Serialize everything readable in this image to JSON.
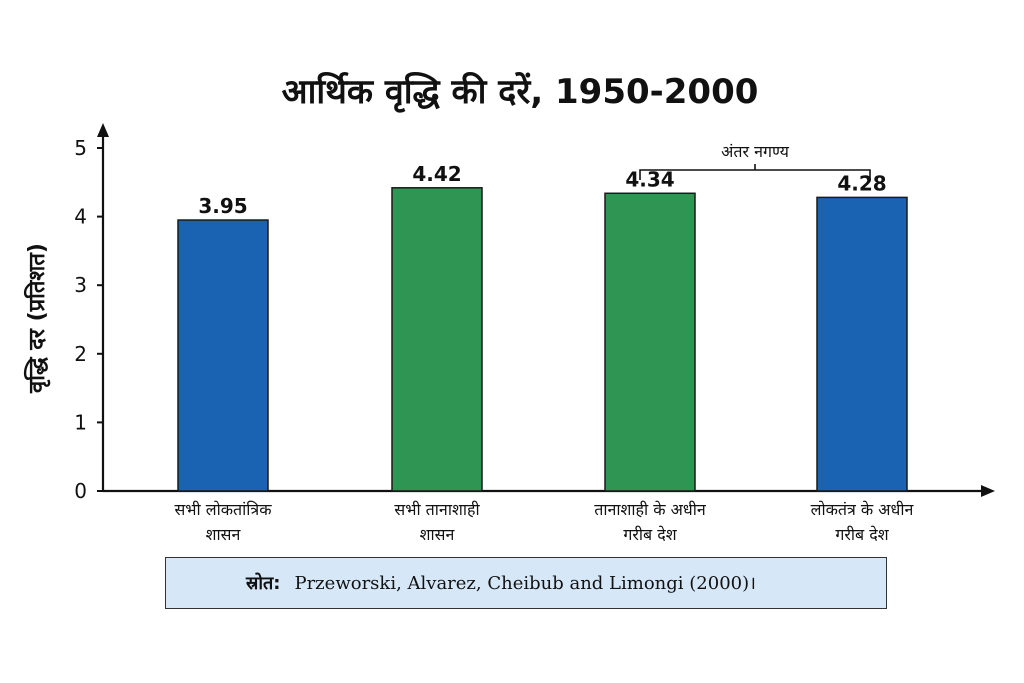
{
  "colors": {
    "democracy": "#1a63b3",
    "dictatorship": "#2f9553",
    "axis": "#111111",
    "source_bg": "#d6e8f8"
  },
  "chart_data": {
    "type": "bar",
    "title": "आर्थिक वृद्धि की दरें, 1950-2000",
    "ylabel": "वृद्धि दर (प्रतिशत)",
    "xlabel": "",
    "ylim": [
      0,
      5
    ],
    "yticks": [
      "0",
      "1",
      "2",
      "3",
      "4",
      "5"
    ],
    "grid": false,
    "categories": [
      [
        "सभी लोकतांत्रिक",
        "शासन"
      ],
      [
        "सभी तानाशाही",
        "शासन"
      ],
      [
        "तानाशाही के अधीन",
        "गरीब देश"
      ],
      [
        "लोकतंत्र के अधीन",
        "गरीब देश"
      ]
    ],
    "values": [
      3.95,
      4.42,
      4.34,
      4.28
    ],
    "value_labels": [
      "3.95",
      "4.42",
      "4.34",
      "4.28"
    ],
    "bar_colors": [
      "#1a63b3",
      "#2f9553",
      "#2f9553",
      "#1a63b3"
    ],
    "annotation": {
      "text": "अंतर नगण्य",
      "from_bar": 2,
      "to_bar": 3
    }
  },
  "source": {
    "label": "स्रोत:",
    "text": "Przeworski, Alvarez, Cheibub and Limongi (2000)।"
  }
}
